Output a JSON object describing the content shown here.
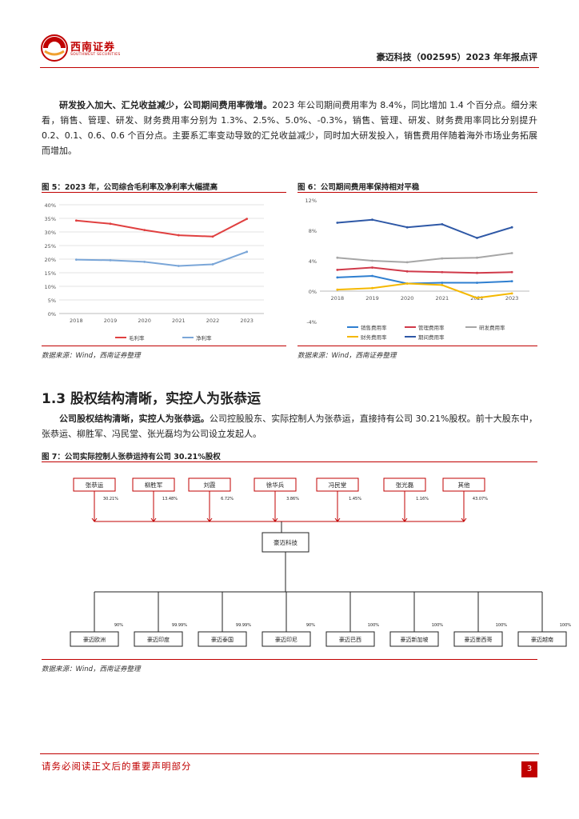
{
  "header": {
    "logo_cn": "西南证券",
    "logo_en": "SOUTHWEST SECURITIES",
    "report_title": "豪迈科技（002595）2023 年年报点评"
  },
  "intro_para": {
    "bold_lead": "研发投入加大、汇兑收益减少，公司期间费用率微增。",
    "text": "2023 年公司期间费用率为 8.4%，同比增加 1.4 个百分点。细分来看，销售、管理、研发、财务费用率分别为 1.3%、2.5%、5.0%、-0.3%，销售、管理、研发、财务费用率同比分别提升 0.2、0.1、0.6、0.6 个百分点。主要系汇率变动导致的汇兑收益减少，同时加大研发投入，销售费用伴随着海外市场业务拓展而增加。"
  },
  "fig5": {
    "caption": "图 5：2023 年，公司综合毛利率及净利率大幅提高",
    "source": "数据来源：Wind，西南证券整理"
  },
  "fig6": {
    "caption": "图 6：公司期间费用率保持相对平稳",
    "source": "数据来源：Wind，西南证券整理"
  },
  "chart_data": [
    {
      "type": "line",
      "title": "",
      "categories": [
        "2018",
        "2019",
        "2020",
        "2021",
        "2022",
        "2023"
      ],
      "y_ticks": [
        "0%",
        "5%",
        "10%",
        "15%",
        "20%",
        "25%",
        "30%",
        "35%",
        "40%"
      ],
      "ylim": [
        0,
        40
      ],
      "series": [
        {
          "name": "毛利率",
          "color": "#e04040",
          "values": [
            34.2,
            33.0,
            30.7,
            28.8,
            28.3,
            34.8
          ]
        },
        {
          "name": "净利率",
          "color": "#7aa6d8",
          "values": [
            19.8,
            19.6,
            19.0,
            17.5,
            18.1,
            22.7
          ]
        }
      ]
    },
    {
      "type": "line",
      "title": "",
      "categories": [
        "2018",
        "2019",
        "2020",
        "2021",
        "2022",
        "2023"
      ],
      "y_ticks": [
        "-4%",
        "0%",
        "4%",
        "8%",
        "12%"
      ],
      "ylim": [
        -4,
        12
      ],
      "series": [
        {
          "name": "销售费用率",
          "color": "#2f7fd0",
          "values": [
            1.8,
            2.0,
            1.0,
            1.1,
            1.1,
            1.3
          ]
        },
        {
          "name": "管理费用率",
          "color": "#d03a4a",
          "values": [
            2.8,
            3.1,
            2.6,
            2.5,
            2.4,
            2.5
          ]
        },
        {
          "name": "研发费用率",
          "color": "#a6a6a6",
          "values": [
            4.4,
            4.0,
            3.8,
            4.3,
            4.4,
            5.0
          ]
        },
        {
          "name": "财务费用率",
          "color": "#f5b800",
          "values": [
            0.2,
            0.4,
            1.0,
            0.8,
            -0.9,
            -0.3
          ]
        },
        {
          "name": "期间费用率",
          "color": "#2e58a6",
          "values": [
            9.0,
            9.4,
            8.4,
            8.8,
            7.0,
            8.4
          ]
        }
      ]
    }
  ],
  "section": {
    "title": "1.3 股权结构清晰，实控人为张恭运"
  },
  "section_para": {
    "bold_lead": "公司股权结构清晰，实控人为张恭运。",
    "text": "公司控股股东、实际控制人为张恭运，直接持有公司 30.21%股权。前十大股东中，张恭运、柳胜军、冯民堂、张光磊均为公司设立发起人。"
  },
  "fig7": {
    "caption": "图 7：公司实际控制人张恭运持有公司 30.21%股权",
    "source": "数据来源：Wind，西南证券整理",
    "shareholders": [
      {
        "name": "张恭运",
        "pct": "30.21%"
      },
      {
        "name": "柳胜军",
        "pct": "13.48%"
      },
      {
        "name": "刘霞",
        "pct": "6.72%"
      },
      {
        "name": "徐华兵",
        "pct": "3.86%"
      },
      {
        "name": "冯民堂",
        "pct": "1.45%"
      },
      {
        "name": "张光磊",
        "pct": "1.16%"
      },
      {
        "name": "其他",
        "pct": "43.07%"
      }
    ],
    "company": "豪迈科技",
    "subsidiaries": [
      {
        "name": "豪迈欧洲",
        "pct": "90%"
      },
      {
        "name": "豪迈印度",
        "pct": "99.99%"
      },
      {
        "name": "豪迈泰国",
        "pct": "99.99%"
      },
      {
        "name": "豪迈印尼",
        "pct": "90%"
      },
      {
        "name": "豪迈巴西",
        "pct": "100%"
      },
      {
        "name": "豪迈新加坡",
        "pct": "100%"
      },
      {
        "name": "豪迈墨西哥",
        "pct": "100%"
      },
      {
        "name": "豪迈越南",
        "pct": "100%"
      }
    ]
  },
  "footer": {
    "notice": "请务必阅读正文后的重要声明部分",
    "page": "3"
  },
  "colors": {
    "accent": "#c00000"
  }
}
